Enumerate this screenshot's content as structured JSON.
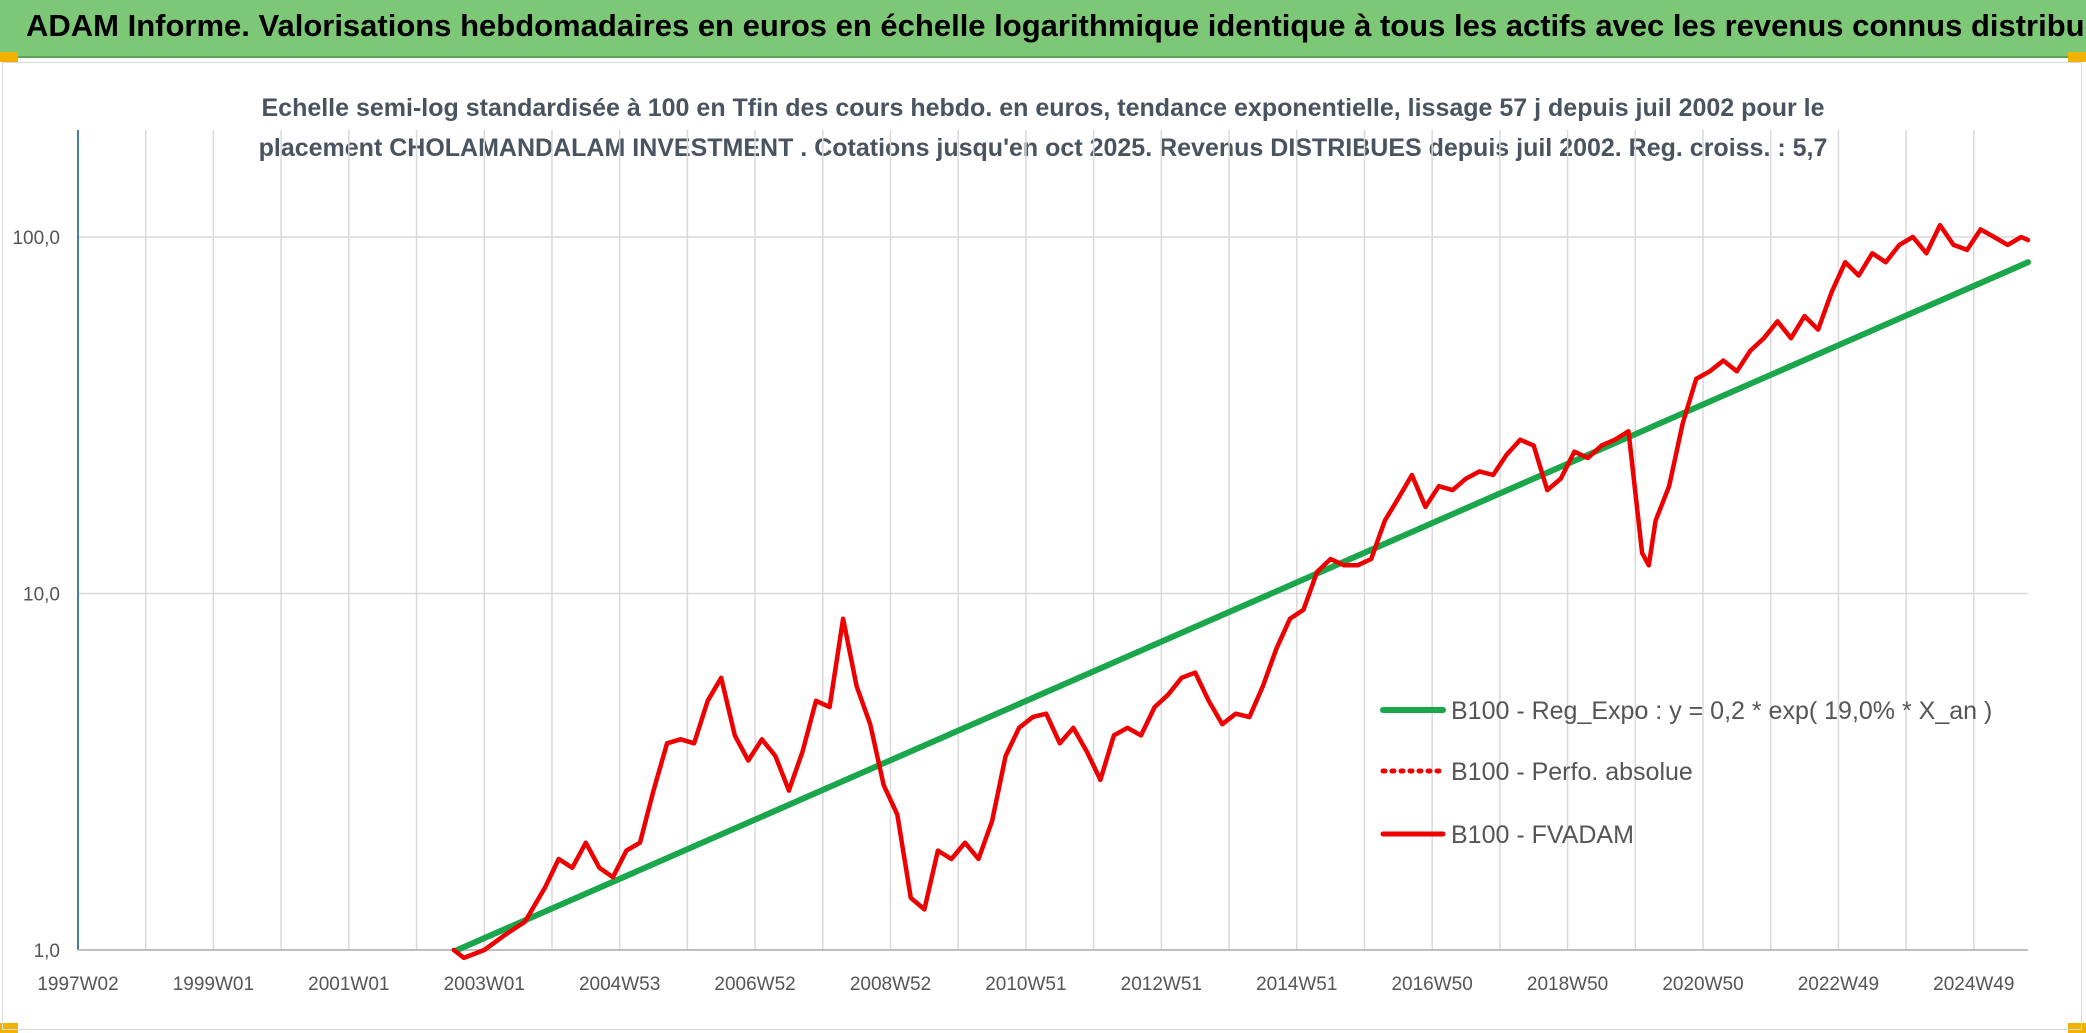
{
  "header": {
    "title": "ADAM Informe. Valorisations hebdomadaires en euros en échelle logarithmique identique à tous les actifs avec les revenus connus distribués"
  },
  "colors": {
    "header_bg": "#7dc876",
    "series_regression": "#1aa64a",
    "series_fvadam": "#ee0000",
    "series_perfo": "#ee0000"
  },
  "chart_data": {
    "type": "line",
    "title_line1": "Echelle semi-log standardisée à 100 en Tfin des cours hebdo. en euros, tendance exponentielle, lissage 57 j depuis juil 2002 pour le",
    "title_line2": "placement CHOLAMANDALAM INVESTMENT . Cotations jusqu'en oct 2025. Revenus DISTRIBUES depuis juil 2002. Reg. croiss. : 5,7",
    "y_scale": "log",
    "ylim": [
      1,
      100
    ],
    "y_ticks": [
      1,
      10,
      100
    ],
    "y_tick_labels": [
      "1,0",
      "10,0",
      "100,0"
    ],
    "xlim": [
      1997.0,
      2025.8
    ],
    "x_ticks": [
      1997.0,
      1999.0,
      2001.0,
      2003.0,
      2005.0,
      2007.0,
      2009.0,
      2011.0,
      2013.0,
      2015.0,
      2017.0,
      2019.0,
      2021.0,
      2023.0,
      2025.0
    ],
    "x_tick_labels": [
      "1997W02",
      "1999W01",
      "2001W01",
      "2003W01",
      "2004W53",
      "2006W52",
      "2008W52",
      "2010W51",
      "2012W51",
      "2014W51",
      "2016W50",
      "2018W50",
      "2020W50",
      "2022W49",
      "2024W49"
    ],
    "grid": true,
    "legend_position": "right",
    "series": [
      {
        "name": "B100 - Reg_Expo : y = 0,2 * exp( 19,0% *  X_an )",
        "style": "solid-thick",
        "color": "#1aa64a",
        "x": [
          2002.6,
          2025.8
        ],
        "y": [
          1.0,
          85.0
        ]
      },
      {
        "name": "B100 - Perfo. absolue",
        "style": "dotted",
        "color": "#ee0000",
        "x": [],
        "y": []
      },
      {
        "name": "B100 - FVADAM",
        "style": "solid",
        "color": "#ee0000",
        "x": [
          2002.55,
          2002.7,
          2003.0,
          2003.3,
          2003.6,
          2003.9,
          2004.1,
          2004.3,
          2004.5,
          2004.7,
          2004.9,
          2005.1,
          2005.3,
          2005.5,
          2005.7,
          2005.9,
          2006.1,
          2006.3,
          2006.5,
          2006.7,
          2006.9,
          2007.1,
          2007.3,
          2007.5,
          2007.7,
          2007.9,
          2008.1,
          2008.3,
          2008.5,
          2008.7,
          2008.9,
          2009.1,
          2009.3,
          2009.5,
          2009.7,
          2009.9,
          2010.1,
          2010.3,
          2010.5,
          2010.7,
          2010.9,
          2011.1,
          2011.3,
          2011.5,
          2011.7,
          2011.9,
          2012.1,
          2012.3,
          2012.5,
          2012.7,
          2012.9,
          2013.1,
          2013.3,
          2013.5,
          2013.7,
          2013.9,
          2014.1,
          2014.3,
          2014.5,
          2014.7,
          2014.9,
          2015.1,
          2015.3,
          2015.5,
          2015.7,
          2015.9,
          2016.1,
          2016.3,
          2016.5,
          2016.7,
          2016.9,
          2017.1,
          2017.3,
          2017.5,
          2017.7,
          2017.9,
          2018.1,
          2018.3,
          2018.5,
          2018.7,
          2018.9,
          2019.1,
          2019.3,
          2019.5,
          2019.7,
          2019.9,
          2020.1,
          2020.2,
          2020.3,
          2020.5,
          2020.7,
          2020.9,
          2021.1,
          2021.3,
          2021.5,
          2021.7,
          2021.9,
          2022.1,
          2022.3,
          2022.5,
          2022.7,
          2022.9,
          2023.1,
          2023.3,
          2023.5,
          2023.7,
          2023.9,
          2024.1,
          2024.3,
          2024.5,
          2024.7,
          2024.9,
          2025.1,
          2025.3,
          2025.5,
          2025.7,
          2025.8
        ],
        "y": [
          1.0,
          0.95,
          1.0,
          1.1,
          1.2,
          1.5,
          1.8,
          1.7,
          2.0,
          1.7,
          1.6,
          1.9,
          2.0,
          2.8,
          3.8,
          3.9,
          3.8,
          5.0,
          5.8,
          4.0,
          3.4,
          3.9,
          3.5,
          2.8,
          3.6,
          5.0,
          4.8,
          8.5,
          5.5,
          4.3,
          2.9,
          2.4,
          1.4,
          1.3,
          1.9,
          1.8,
          2.0,
          1.8,
          2.3,
          3.5,
          4.2,
          4.5,
          4.6,
          3.8,
          4.2,
          3.6,
          3.0,
          4.0,
          4.2,
          4.0,
          4.8,
          5.2,
          5.8,
          6.0,
          5.0,
          4.3,
          4.6,
          4.5,
          5.5,
          7.0,
          8.5,
          9.0,
          11.5,
          12.5,
          12.0,
          12.0,
          12.5,
          16.0,
          18.5,
          21.5,
          17.5,
          20.0,
          19.5,
          21.0,
          22.0,
          21.5,
          24.5,
          27.0,
          26.0,
          19.5,
          21.0,
          25.0,
          24.0,
          26.0,
          27.0,
          28.5,
          13.0,
          12.0,
          16.0,
          20.0,
          30.0,
          40.0,
          42.0,
          45.0,
          42.0,
          48.0,
          52.0,
          58.0,
          52.0,
          60.0,
          55.0,
          70.0,
          85.0,
          78.0,
          90.0,
          85.0,
          95.0,
          100.0,
          90.0,
          108.0,
          95.0,
          92.0,
          105.0,
          100.0,
          95.0,
          100.0,
          98.0
        ]
      }
    ]
  }
}
